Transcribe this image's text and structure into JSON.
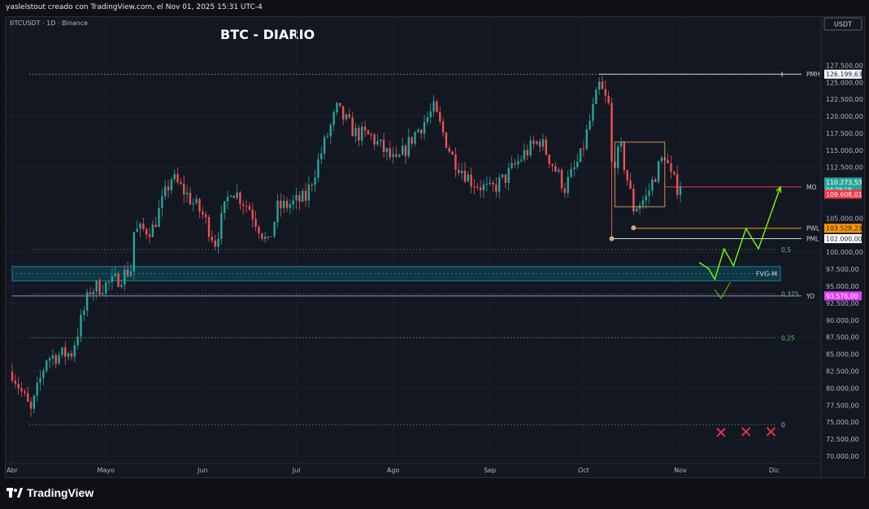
{
  "header": {
    "attribution": "yaslelstout creado con TradingView.com, el Nov 01, 2025 15:31 UTC-4"
  },
  "footer": {
    "brand": "TradingView"
  },
  "chart_data": {
    "type": "candlestick",
    "symbol_label": "BTCUSDT · 1D · Binance",
    "title": "BTC - DIARIO",
    "currency": "USDT",
    "ylim": [
      70000,
      128500
    ],
    "x_start": "2025-04-01",
    "x_end": "2025-12-15",
    "y_ticks": [
      {
        "v": 127500,
        "label": "127.500,00"
      },
      {
        "v": 125000,
        "label": "125.000,00"
      },
      {
        "v": 122500,
        "label": "122.500,00"
      },
      {
        "v": 120000,
        "label": "120.000,00"
      },
      {
        "v": 117500,
        "label": "117.500,00"
      },
      {
        "v": 115000,
        "label": "115.000,00"
      },
      {
        "v": 112500,
        "label": "112.500,00"
      },
      {
        "v": 105000,
        "label": "105.000,00"
      },
      {
        "v": 100000,
        "label": "100.000,00"
      },
      {
        "v": 97500,
        "label": "97.500,00"
      },
      {
        "v": 95000,
        "label": "95.000,00"
      },
      {
        "v": 92500,
        "label": "92.500,00"
      },
      {
        "v": 90000,
        "label": "90.000,00"
      },
      {
        "v": 87500,
        "label": "87.500,00"
      },
      {
        "v": 85000,
        "label": "85.000,00"
      },
      {
        "v": 82500,
        "label": "82.500,00"
      },
      {
        "v": 80000,
        "label": "80.000,00"
      },
      {
        "v": 77500,
        "label": "77.500,00"
      },
      {
        "v": 75000,
        "label": "75.000,00"
      },
      {
        "v": 72500,
        "label": "72.500,00"
      },
      {
        "v": 70000,
        "label": "70.000,00"
      }
    ],
    "x_ticks": [
      {
        "date": "2025-04-01",
        "label": "Abr"
      },
      {
        "date": "2025-05-01",
        "label": "Mayo"
      },
      {
        "date": "2025-06-01",
        "label": "Jun"
      },
      {
        "date": "2025-07-01",
        "label": "Jul"
      },
      {
        "date": "2025-08-01",
        "label": "Ago"
      },
      {
        "date": "2025-09-01",
        "label": "Sep"
      },
      {
        "date": "2025-10-01",
        "label": "Oct"
      },
      {
        "date": "2025-11-01",
        "label": "Nov"
      },
      {
        "date": "2025-12-01",
        "label": "Dic"
      }
    ],
    "price_tags": [
      {
        "v": 126199.63,
        "label": "126.199,63",
        "bg": "#ffffff",
        "fg": "#131722"
      },
      {
        "v": 110273.53,
        "label": "110.273,53",
        "sub": "04:28:19",
        "bg": "#26a69a",
        "fg": "#ffffff"
      },
      {
        "v": 109608.01,
        "label": "109.608,01",
        "bg": "#f23645",
        "fg": "#ffffff"
      },
      {
        "v": 103528.23,
        "label": "103.528,23",
        "bg": "#ff9800",
        "fg": "#131722"
      },
      {
        "v": 102000.0,
        "label": "102.000,00",
        "bg": "#ffffff",
        "fg": "#131722"
      },
      {
        "v": 93576.0,
        "label": "93.576,00",
        "bg": "#e040fb",
        "fg": "#ffffff"
      }
    ],
    "levels": [
      {
        "name": "PMH",
        "v": 126199.63,
        "label": "PMH",
        "color": "#d1d4dc",
        "from": "2025-10-06",
        "dash": "solid"
      },
      {
        "name": "MO",
        "v": 109608.01,
        "label": "MO",
        "color": "#f23645",
        "from": "2025-10-27",
        "dash": "solid"
      },
      {
        "name": "PWL",
        "v": 103528.23,
        "label": "PWL",
        "color": "#ff9800",
        "from": "2025-10-17",
        "dash": "solid"
      },
      {
        "name": "PML",
        "v": 102000.0,
        "label": "PML",
        "color": "#d1d4dc",
        "from": "2025-10-10",
        "dash": "solid"
      },
      {
        "name": "YO",
        "v": 93576.0,
        "label": "YO",
        "color": "#b39ddb",
        "from": "2025-04-01",
        "dash": "solid"
      }
    ],
    "fib_levels": [
      {
        "v": 126199.63,
        "label": "1"
      },
      {
        "v": 100400,
        "label": "0,5"
      },
      {
        "v": 93850,
        "label": "0,375"
      },
      {
        "v": 87400,
        "label": "0,25"
      },
      {
        "v": 74600,
        "label": "0"
      }
    ],
    "zone": {
      "label": "FVG-M",
      "top": 97900,
      "bottom": 95800,
      "from": "2025-04-01",
      "to": "2025-12-03"
    },
    "range_box": {
      "top": 116200,
      "bottom": 106700,
      "from": "2025-10-11",
      "to": "2025-10-27"
    },
    "markers": [
      {
        "date": "2025-10-10",
        "v": 102000,
        "color": "#c8b07a"
      },
      {
        "date": "2025-10-17",
        "v": 103600,
        "color": "#c8b07a"
      }
    ],
    "projection": [
      {
        "date": "2025-11-07",
        "v": 98500
      },
      {
        "date": "2025-11-10",
        "v": 97600
      },
      {
        "date": "2025-11-12",
        "v": 96000
      },
      {
        "date": "2025-11-15",
        "v": 100500
      },
      {
        "date": "2025-11-18",
        "v": 98000
      },
      {
        "date": "2025-11-22",
        "v": 103500
      },
      {
        "date": "2025-11-26",
        "v": 100500
      },
      {
        "date": "2025-12-03",
        "v": 109600
      }
    ],
    "projection_alt": [
      {
        "date": "2025-11-12",
        "v": 94500
      },
      {
        "date": "2025-11-14",
        "v": 93200
      },
      {
        "date": "2025-11-17",
        "v": 95600
      }
    ],
    "x_marks": [
      {
        "date": "2025-11-14",
        "v": 73500
      },
      {
        "date": "2025-11-22",
        "v": 73600
      },
      {
        "date": "2025-11-30",
        "v": 73600
      }
    ],
    "anchors": [
      {
        "date": "2025-04-01",
        "v": 82400
      },
      {
        "date": "2025-04-07",
        "v": 76500
      },
      {
        "date": "2025-04-12",
        "v": 84500
      },
      {
        "date": "2025-04-20",
        "v": 85200
      },
      {
        "date": "2025-04-26",
        "v": 94500
      },
      {
        "date": "2025-05-03",
        "v": 95500
      },
      {
        "date": "2025-05-09",
        "v": 97500
      },
      {
        "date": "2025-05-10",
        "v": 103000
      },
      {
        "date": "2025-05-16",
        "v": 103500
      },
      {
        "date": "2025-05-22",
        "v": 111000
      },
      {
        "date": "2025-05-26",
        "v": 109000
      },
      {
        "date": "2025-06-01",
        "v": 105500
      },
      {
        "date": "2025-06-05",
        "v": 101500
      },
      {
        "date": "2025-06-10",
        "v": 109500
      },
      {
        "date": "2025-06-16",
        "v": 106500
      },
      {
        "date": "2025-06-22",
        "v": 101000
      },
      {
        "date": "2025-06-25",
        "v": 106500
      },
      {
        "date": "2025-06-30",
        "v": 107200
      },
      {
        "date": "2025-07-04",
        "v": 108000
      },
      {
        "date": "2025-07-10",
        "v": 116000
      },
      {
        "date": "2025-07-14",
        "v": 121000
      },
      {
        "date": "2025-07-20",
        "v": 117500
      },
      {
        "date": "2025-07-25",
        "v": 117000
      },
      {
        "date": "2025-08-02",
        "v": 113000
      },
      {
        "date": "2025-08-08",
        "v": 117500
      },
      {
        "date": "2025-08-14",
        "v": 121000
      },
      {
        "date": "2025-08-20",
        "v": 114000
      },
      {
        "date": "2025-08-26",
        "v": 110500
      },
      {
        "date": "2025-09-01",
        "v": 109000
      },
      {
        "date": "2025-09-06",
        "v": 111000
      },
      {
        "date": "2025-09-12",
        "v": 114500
      },
      {
        "date": "2025-09-17",
        "v": 116500
      },
      {
        "date": "2025-09-25",
        "v": 109500
      },
      {
        "date": "2025-09-30",
        "v": 114000
      },
      {
        "date": "2025-10-06",
        "v": 124500
      },
      {
        "date": "2025-10-09",
        "v": 121500
      },
      {
        "date": "2025-10-10",
        "v": 113000
      },
      {
        "date": "2025-10-13",
        "v": 115000
      },
      {
        "date": "2025-10-17",
        "v": 106500
      },
      {
        "date": "2025-10-21",
        "v": 108000
      },
      {
        "date": "2025-10-24",
        "v": 111500
      },
      {
        "date": "2025-10-27",
        "v": 114500
      },
      {
        "date": "2025-10-29",
        "v": 111000
      },
      {
        "date": "2025-10-31",
        "v": 109600
      },
      {
        "date": "2025-11-01",
        "v": 110273
      }
    ]
  }
}
